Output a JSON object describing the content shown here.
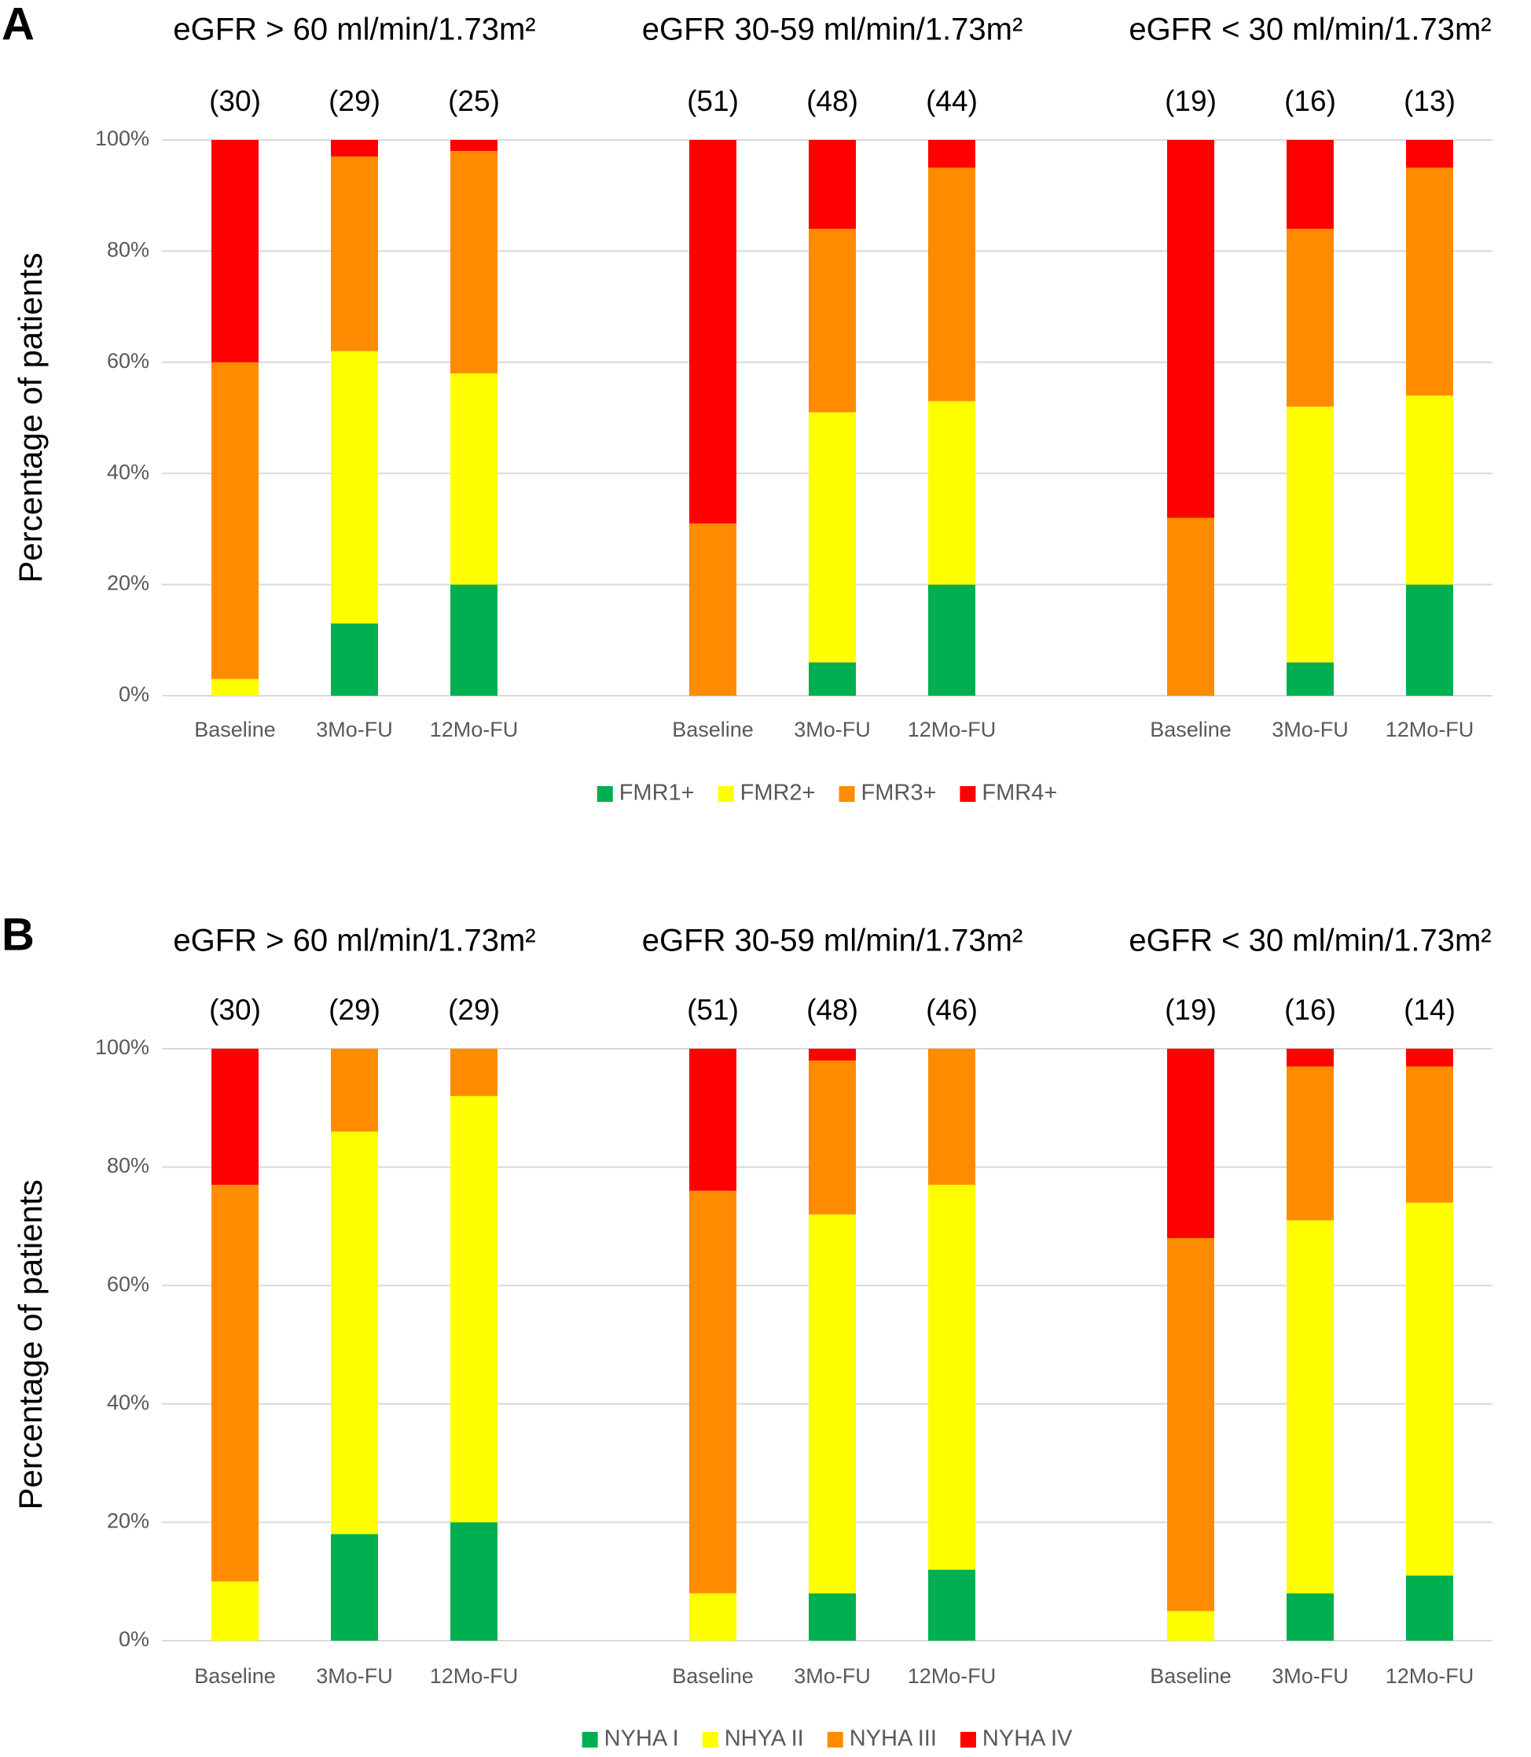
{
  "chart_data": [
    {
      "type": "bar",
      "stacked": true,
      "panel": "A",
      "ylabel": "Percentage of patients",
      "group_titles": [
        "eGFR > 60 ml/min/1.73m²",
        "eGFR 30-59 ml/min/1.73m²",
        "eGFR < 30 ml/min/1.73m²"
      ],
      "count_labels": [
        "(30)",
        "(29)",
        "(25)",
        "(51)",
        "(48)",
        "(44)",
        "(19)",
        "(16)",
        "(13)"
      ],
      "categories": [
        "Baseline",
        "3Mo-FU",
        "12Mo-FU",
        "Baseline",
        "3Mo-FU",
        "12Mo-FU",
        "Baseline",
        "3Mo-FU",
        "12Mo-FU"
      ],
      "series": [
        {
          "name": "FMR1+",
          "color": "#00b050",
          "values": [
            0,
            13,
            20,
            0,
            6,
            20,
            0,
            6,
            20
          ]
        },
        {
          "name": "FMR2+",
          "color": "#ffff00",
          "values": [
            3,
            49,
            38,
            0,
            45,
            33,
            0,
            46,
            34
          ]
        },
        {
          "name": "FMR3+",
          "color": "#ff8c00",
          "values": [
            57,
            35,
            40,
            31,
            33,
            42,
            32,
            32,
            41
          ]
        },
        {
          "name": "FMR4+",
          "color": "#ff0000",
          "values": [
            40,
            3,
            2,
            69,
            16,
            5,
            68,
            16,
            5
          ]
        }
      ],
      "ylim": [
        0,
        100
      ],
      "yticks": [
        {
          "value": 0,
          "label": "0%"
        },
        {
          "value": 20,
          "label": "20%"
        },
        {
          "value": 40,
          "label": "40%"
        },
        {
          "value": 60,
          "label": "60%"
        },
        {
          "value": 80,
          "label": "80%"
        },
        {
          "value": 100,
          "label": "100%"
        }
      ],
      "grid": true,
      "legend": "bottom"
    },
    {
      "type": "bar",
      "stacked": true,
      "panel": "B",
      "ylabel": "Percentage of patients",
      "group_titles": [
        "eGFR > 60 ml/min/1.73m²",
        "eGFR 30-59 ml/min/1.73m²",
        "eGFR < 30 ml/min/1.73m²"
      ],
      "count_labels": [
        "(30)",
        "(29)",
        "(29)",
        "(51)",
        "(48)",
        "(46)",
        "(19)",
        "(16)",
        "(14)"
      ],
      "categories": [
        "Baseline",
        "3Mo-FU",
        "12Mo-FU",
        "Baseline",
        "3Mo-FU",
        "12Mo-FU",
        "Baseline",
        "3Mo-FU",
        "12Mo-FU"
      ],
      "series": [
        {
          "name": "NYHA I",
          "color": "#00b050",
          "values": [
            0,
            18,
            20,
            0,
            8,
            12,
            0,
            8,
            11
          ]
        },
        {
          "name": "NHYA II",
          "color": "#ffff00",
          "values": [
            10,
            68,
            72,
            8,
            64,
            65,
            5,
            63,
            63
          ]
        },
        {
          "name": "NYHA III",
          "color": "#ff8c00",
          "values": [
            67,
            14,
            8,
            68,
            26,
            23,
            63,
            26,
            23
          ]
        },
        {
          "name": "NYHA IV",
          "color": "#ff0000",
          "values": [
            23,
            0,
            0,
            24,
            2,
            0,
            32,
            3,
            3
          ]
        }
      ],
      "ylim": [
        0,
        100
      ],
      "yticks": [
        {
          "value": 0,
          "label": "0%"
        },
        {
          "value": 20,
          "label": "20%"
        },
        {
          "value": 40,
          "label": "40%"
        },
        {
          "value": 60,
          "label": "60%"
        },
        {
          "value": 80,
          "label": "80%"
        },
        {
          "value": 100,
          "label": "100%"
        }
      ],
      "grid": true,
      "legend": "bottom"
    }
  ]
}
